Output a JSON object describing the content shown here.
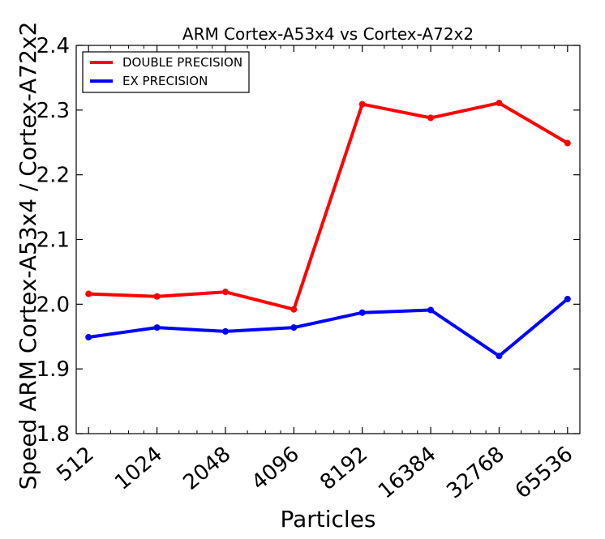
{
  "chart_data": {
    "type": "line",
    "title": "ARM Cortex-A53x4 vs Cortex-A72x2",
    "xlabel": "Particles",
    "ylabel": "Speed ARM Cortex-A53x4 / Cortex-A72x2",
    "categories": [
      "512",
      "1024",
      "2048",
      "4096",
      "8192",
      "16384",
      "32768",
      "65536"
    ],
    "x_scale": "log2",
    "ylim": [
      1.8,
      2.4
    ],
    "yticks": [
      "1.8",
      "1.9",
      "2.0",
      "2.1",
      "2.2",
      "2.3",
      "2.4"
    ],
    "grid": false,
    "legend": "top-left",
    "series": [
      {
        "name": "DOUBLE PRECISION",
        "color": "#ff0000",
        "values": [
          2.016,
          2.012,
          2.019,
          1.992,
          2.309,
          2.288,
          2.311,
          2.249
        ]
      },
      {
        "name": "EX PRECISION",
        "color": "#0000ff",
        "values": [
          1.949,
          1.964,
          1.958,
          1.964,
          1.987,
          1.991,
          1.92,
          2.008
        ]
      }
    ]
  }
}
